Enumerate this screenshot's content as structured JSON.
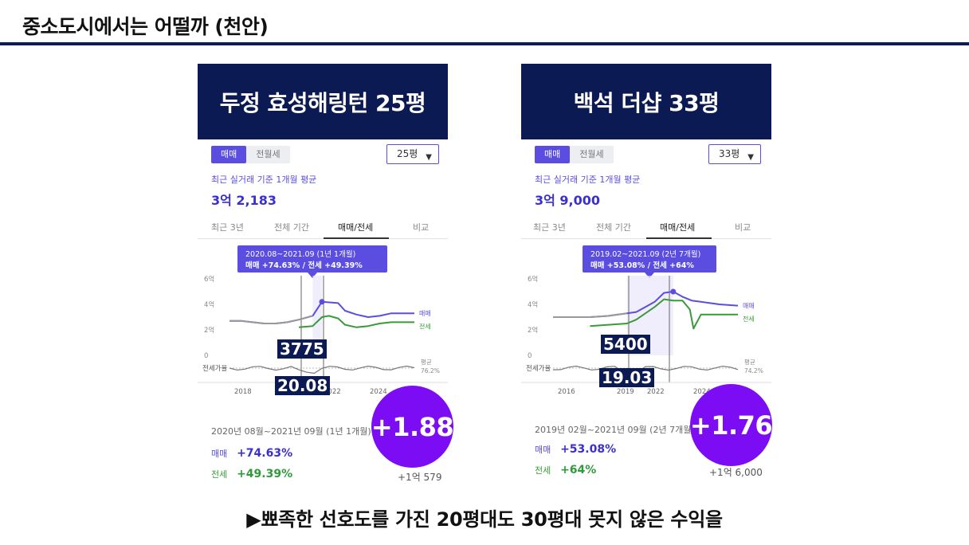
{
  "slide": {
    "title": "중소도시에서는 어떨까 (천안)",
    "caption": "▶뾰족한 선호도를 가진 20평대도 30평대 못지 않은 수익을"
  },
  "colors": {
    "header_bg": "#0b1a52",
    "sale": "#5a4de0",
    "jeonse": "#3a9a3a",
    "circle": "#7b0cf3"
  },
  "panels": [
    {
      "header": "두정 효성해링턴 25평",
      "segment": {
        "sale": "매매",
        "rent": "전월세"
      },
      "select_value": "25평",
      "avg_label": "최근 실거래 기준 1개월 평균",
      "avg_value": "3억 2,183",
      "tabs": [
        "최근 3년",
        "전체 기간",
        "매매/전세",
        "비교"
      ],
      "tooltip": {
        "period": "2020.08~2021.09 (1년 1개월)",
        "change": "매매 +74.63%  /  전세 +49.39%"
      },
      "y_ticks": [
        "6억",
        "4억",
        "2억",
        "0"
      ],
      "x_ticks": [
        "2018",
        "",
        "2022",
        "2024"
      ],
      "ratio_label": "전세가율",
      "ratio_avg_label": "평균",
      "ratio_avg_value": "76.2%",
      "legend_sale": "매매",
      "legend_jeonse": "전세",
      "badge_gap": "3775",
      "badge_ratio": "20.08",
      "period_text": "2020년 08월~2021년 09월 (1년 1개월)",
      "sale_label": "매매",
      "sale_change": "+74.63%",
      "jeonse_label": "전세",
      "jeonse_change": "+49.39%",
      "diff_text": "+1억 579",
      "circle_value": "+1.88"
    },
    {
      "header": "백석 더샵 33평",
      "segment": {
        "sale": "매매",
        "rent": "전월세"
      },
      "select_value": "33평",
      "avg_label": "최근 실거래 기준 1개월 평균",
      "avg_value": "3억 9,000",
      "tabs": [
        "최근 3년",
        "전체 기간",
        "매매/전세",
        "비교"
      ],
      "tooltip": {
        "period": "2019.02~2021.09 (2년 7개월)",
        "change": "매매 +53.08%  /  전세 +64%"
      },
      "y_ticks": [
        "6억",
        "4억",
        "2억",
        "0"
      ],
      "x_ticks": [
        "2016",
        "2019",
        "2022",
        "2024"
      ],
      "ratio_label": "전세가율",
      "ratio_avg_label": "평균",
      "ratio_avg_value": "74.2%",
      "legend_sale": "매매",
      "legend_jeonse": "전세",
      "badge_gap": "5400",
      "badge_ratio": "19.03",
      "period_text": "2019년 02월~2021년 09월 (2년 7개월)",
      "sale_label": "매매",
      "sale_change": "+53.08%",
      "jeonse_label": "전세",
      "jeonse_change": "+64%",
      "diff_text": "+1억 6,000",
      "circle_value": "+1.76"
    }
  ],
  "chart_data": [
    {
      "type": "line",
      "ylim": [
        0,
        6
      ],
      "x_range": [
        2017,
        2025
      ],
      "series": [
        {
          "name": "매매",
          "x": [
            2017,
            2017.5,
            2018,
            2018.5,
            2019,
            2019.5,
            2020,
            2020.6,
            2021,
            2021.7,
            2022,
            2022.5,
            2023,
            2023.5,
            2024,
            2024.5,
            2025
          ],
          "values": [
            2.7,
            2.7,
            2.6,
            2.5,
            2.5,
            2.6,
            2.8,
            3.1,
            4.2,
            4.1,
            3.5,
            3.2,
            3.0,
            3.1,
            3.3,
            3.3,
            3.3
          ]
        },
        {
          "name": "전세",
          "x": [
            2020,
            2020.6,
            2021,
            2021.3,
            2021.7,
            2022,
            2022.5,
            2023,
            2023.5,
            2024,
            2024.5,
            2025
          ],
          "values": [
            2.2,
            2.3,
            3.0,
            3.1,
            2.9,
            2.4,
            2.2,
            2.3,
            2.5,
            2.6,
            2.6,
            2.6
          ]
        }
      ]
    },
    {
      "type": "line",
      "ylim": [
        0,
        6
      ],
      "x_range": [
        2015,
        2025
      ],
      "series": [
        {
          "name": "매매",
          "x": [
            2015,
            2016,
            2017,
            2018,
            2019,
            2019.5,
            2020,
            2020.5,
            2021,
            2021.5,
            2022,
            2022.5,
            2023,
            2023.5,
            2024,
            2025
          ],
          "values": [
            3.0,
            3.0,
            3.0,
            3.1,
            3.3,
            3.4,
            3.8,
            4.2,
            4.9,
            5.0,
            4.6,
            4.3,
            4.2,
            4.1,
            4.0,
            3.9
          ]
        },
        {
          "name": "전세",
          "x": [
            2017,
            2018,
            2019,
            2019.5,
            2020,
            2020.5,
            2021,
            2021.5,
            2022,
            2022.4,
            2022.6,
            2023,
            2024,
            2025
          ],
          "values": [
            2.3,
            2.4,
            2.5,
            2.8,
            3.3,
            3.8,
            4.4,
            4.3,
            4.3,
            3.6,
            2.1,
            3.2,
            3.2,
            3.2
          ]
        }
      ]
    }
  ]
}
